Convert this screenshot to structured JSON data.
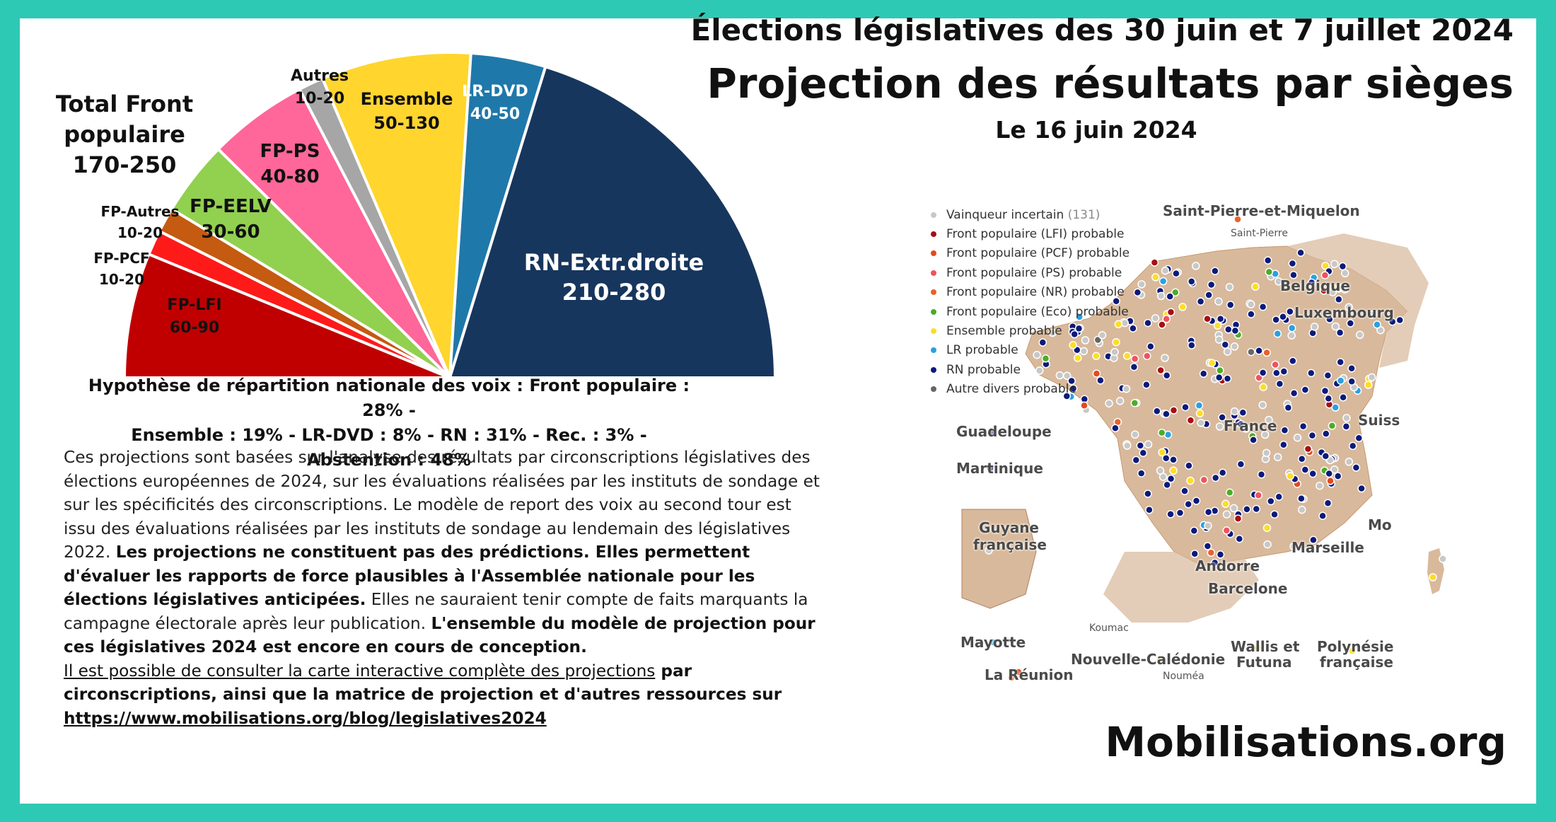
{
  "header": {
    "line1": "Élections législatives des 30 juin et 7 juillet 2024",
    "line2": "Projection des résultats par sièges",
    "line3": "Le 16 juin 2024"
  },
  "chart_data": {
    "type": "pie",
    "title": "Projection des résultats par sièges",
    "subtitle": "Hémicycle (demi-cercle)",
    "group_label": [
      "Total Front",
      "populaire",
      "170-250"
    ],
    "slices": [
      {
        "name": "FP-LFI",
        "range": "60-90",
        "value": 75,
        "color": "#c00000"
      },
      {
        "name": "FP-PCF",
        "range": "10-20",
        "value": 15,
        "color": "#ff1a1a"
      },
      {
        "name": "FP-Autres",
        "range": "10-20",
        "value": 15,
        "color": "#c55a11"
      },
      {
        "name": "FP-EELV",
        "range": "30-60",
        "value": 45,
        "color": "#92d050"
      },
      {
        "name": "FP-PS",
        "range": "40-80",
        "value": 60,
        "color": "#ff6699"
      },
      {
        "name": "Autres",
        "range": "10-20",
        "value": 15,
        "color": "#a6a6a6"
      },
      {
        "name": "Ensemble",
        "range": "50-130",
        "value": 90,
        "color": "#ffd52e"
      },
      {
        "name": "LR-DVD",
        "range": "40-50",
        "value": 45,
        "color": "#1f78aa"
      },
      {
        "name": "RN-Extr.droite",
        "range": "210-280",
        "value": 245,
        "color": "#17365d"
      }
    ]
  },
  "hypothesis": {
    "line1": "Hypothèse de répartition nationale des voix : Front populaire : 28% -",
    "line2": "Ensemble : 19% - LR-DVD : 8% - RN : 31% - Rec. : 3% - Abstention : 48%"
  },
  "description": {
    "p1": "Ces projections sont basées sur l'analyse des résultats par circonscriptions législatives des élections européennes de 2024, sur les évaluations réalisées par les instituts de sondage et sur les spécificités des circonscriptions. Le modèle de report des voix au second tour est issu des évaluations réalisées par les instituts de sondage au lendemain des législatives 2022. ",
    "b1": "Les projections ne constituent pas des prédictions. Elles permettent d'évaluer les rapports de force plausibles à l'Assemblée nationale pour les élections législatives anticipées.",
    "p2": " Elles ne sauraient tenir compte de faits marquants la campagne électorale après leur publication. ",
    "b2": "L'ensemble du modèle de projection pour ces législatives 2024 est encore en cours de conception.",
    "u1": "Il est possible de consulter la carte interactive complète des projections",
    "b3": " par circonscriptions, ainsi que la matrice de projection et d'autres ressources sur ",
    "link": "https://www.mobilisations.org/blog/legislatives2024"
  },
  "map": {
    "legend": [
      {
        "label": "Vainqueur incertain",
        "count": "(131)",
        "color": "#c8c8c8"
      },
      {
        "label": "Front populaire (LFI) probable",
        "color": "#a50f15"
      },
      {
        "label": "Front populaire (PCF) probable",
        "color": "#e34a1f"
      },
      {
        "label": "Front populaire (PS) probable",
        "color": "#f0525f"
      },
      {
        "label": "Front populaire (NR) probable",
        "color": "#e8622c"
      },
      {
        "label": "Front populaire (Eco) probable",
        "color": "#4dac26"
      },
      {
        "label": "Ensemble probable",
        "color": "#ffdd22"
      },
      {
        "label": "LR probable",
        "color": "#2aa0e0"
      },
      {
        "label": "RN probable",
        "color": "#0b1a7a"
      },
      {
        "label": "Autre divers probable",
        "color": "#666666"
      }
    ],
    "places": {
      "spm": "Saint-Pierre-et-Miquelon",
      "spm_small": "Saint-Pierre",
      "belgique": "Belgique",
      "luxembourg": "Luxembourg",
      "suisse": "Suiss",
      "france": "France",
      "guadeloupe": "Guadeloupe",
      "martinique": "Martinique",
      "guyane1": "Guyane",
      "guyane2": "française",
      "andorre": "Andorre",
      "barcelone": "Barcelone",
      "marseille": "Marseille",
      "monaco": "Mo",
      "mayotte": "Mayotte",
      "reunion": "La Réunion",
      "kouma": "Koumac",
      "caledonie": "Nouvelle-Calédonie",
      "noumea": "Nouméa",
      "wallis1": "Wallis et",
      "wallis2": "Futuna",
      "poly1": "Polynésie",
      "poly2": "française"
    }
  },
  "brand": "Mobilisations.org"
}
